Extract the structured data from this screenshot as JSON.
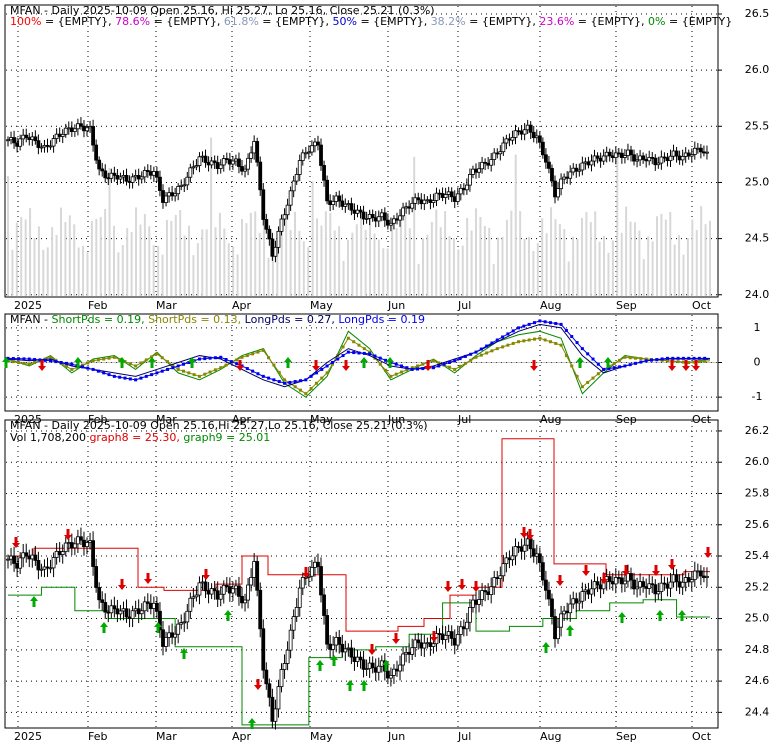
{
  "colors": {
    "fib100": "#ff0000",
    "fib786": "#cc00cc",
    "fib618": "#8899bb",
    "fib50": "#0000cc",
    "fib382": "#8899bb",
    "fib236": "#cc00cc",
    "fib0": "#008800",
    "price": "#000000",
    "volume": "#d8d8d8",
    "short1": "#008800",
    "short2": "#888800",
    "long1": "#000066",
    "long2": "#0000ee",
    "graph8": "#dd0000",
    "graph9": "#008800",
    "up_arrow": "#00aa00",
    "down_arrow": "#dd0000"
  },
  "chart_data": [
    {
      "type": "line",
      "panel": "price-fibonacci",
      "title": "MFAN - Daily 2025-10-09 Open 25.16, Hi 25.27, Lo 25.16, Close 25.21 (0.3%)",
      "fib_legend": [
        {
          "label": "100%",
          "text": " = {EMPTY},",
          "color_key": "fib100"
        },
        {
          "label": "78.6%",
          "text": " = {EMPTY},",
          "color_key": "fib786"
        },
        {
          "label": "61.8%",
          "text": " = {EMPTY},",
          "color_key": "fib618"
        },
        {
          "label": "50%",
          "text": " = {EMPTY},",
          "color_key": "fib50"
        },
        {
          "label": "38.2%",
          "text": " = {EMPTY},",
          "color_key": "fib382"
        },
        {
          "label": "23.6%",
          "text": " = {EMPTY},",
          "color_key": "fib236"
        },
        {
          "label": "0%",
          "text": " = {EMPTY}",
          "color_key": "fib0"
        }
      ],
      "x_tick_labels": [
        "2025",
        "Feb",
        "Mar",
        "Apr",
        "May",
        "Jun",
        "Jul",
        "Aug",
        "Sep",
        "Oct"
      ],
      "y_tick_labels": [
        "26.5",
        "26.0",
        "25.5",
        "25.0",
        "24.5",
        "24.0"
      ],
      "ylim": [
        23.98,
        26.58
      ],
      "close": [
        25.38,
        25.35,
        25.42,
        25.36,
        25.3,
        25.38,
        25.45,
        25.48,
        25.5,
        25.47,
        25.1,
        25.05,
        25.06,
        25.02,
        25.04,
        25.08,
        25.1,
        24.85,
        24.9,
        24.96,
        25.1,
        25.22,
        25.18,
        25.15,
        25.2,
        25.18,
        25.1,
        25.38,
        24.7,
        24.35,
        24.65,
        24.9,
        25.2,
        25.3,
        25.35,
        24.82,
        24.85,
        24.8,
        24.75,
        24.7,
        24.68,
        24.7,
        24.62,
        24.72,
        24.8,
        24.85,
        24.82,
        24.88,
        24.9,
        24.86,
        24.95,
        25.1,
        25.15,
        25.2,
        25.3,
        25.4,
        25.45,
        25.48,
        25.4,
        25.2,
        24.9,
        25.05,
        25.1,
        25.15,
        25.2,
        25.22,
        25.25,
        25.24,
        25.26,
        25.2,
        25.22,
        25.18,
        25.21,
        25.25,
        25.22,
        25.27,
        25.3,
        25.21
      ]
    },
    {
      "type": "line",
      "panel": "oscillator",
      "legend": [
        {
          "text": "MFAN - ",
          "color_key": "price"
        },
        {
          "text": "ShortPds = 0.19, ",
          "color_key": "short1"
        },
        {
          "text": "ShortPds = 0.13, ",
          "color_key": "short2"
        },
        {
          "text": "LongPds = 0.27, ",
          "color_key": "long1"
        },
        {
          "text": "LongPds = 0.19",
          "color_key": "long2"
        }
      ],
      "x_tick_labels": [
        "2025",
        "Feb",
        "Mar",
        "Apr",
        "May",
        "Jun",
        "Jul",
        "Aug",
        "Sep",
        "Oct"
      ],
      "y_tick_labels": [
        "1",
        "0",
        "-1"
      ],
      "ylim": [
        -1.4,
        1.4
      ],
      "series_values": {
        "short1": [
          0.1,
          -0.1,
          0.2,
          -0.3,
          0.1,
          0.2,
          -0.2,
          0.3,
          -0.3,
          -0.5,
          -0.2,
          0.2,
          0.4,
          -0.6,
          -1.0,
          -0.4,
          0.9,
          0.4,
          -0.5,
          -0.2,
          0.1,
          -0.3,
          0.2,
          0.6,
          0.8,
          0.9,
          0.7,
          -0.9,
          -0.3,
          0.2,
          0.1,
          0.05,
          0.0,
          0.1
        ],
        "short2": [
          0.05,
          -0.05,
          0.15,
          -0.2,
          0.05,
          0.15,
          -0.1,
          0.25,
          -0.2,
          -0.4,
          -0.15,
          0.15,
          0.35,
          -0.5,
          -0.9,
          -0.3,
          0.7,
          0.3,
          -0.4,
          -0.15,
          0.05,
          -0.2,
          0.15,
          0.4,
          0.6,
          0.7,
          0.5,
          -0.7,
          -0.2,
          0.15,
          0.1,
          0.05,
          0.0,
          0.05
        ],
        "long1": [
          0.1,
          0.05,
          0.1,
          -0.1,
          -0.2,
          -0.3,
          -0.4,
          -0.2,
          0.0,
          0.2,
          0.1,
          -0.2,
          -0.5,
          -0.7,
          -0.5,
          0.0,
          0.4,
          0.2,
          -0.1,
          -0.2,
          -0.1,
          0.1,
          0.3,
          0.6,
          0.9,
          1.1,
          1.0,
          0.2,
          -0.3,
          -0.1,
          0.05,
          0.1,
          0.1,
          0.1
        ],
        "long2": [
          0.12,
          0.1,
          0.05,
          -0.05,
          -0.2,
          -0.4,
          -0.5,
          -0.3,
          -0.1,
          0.1,
          0.15,
          -0.1,
          -0.4,
          -0.6,
          -0.5,
          -0.1,
          0.3,
          0.25,
          0.0,
          -0.2,
          -0.15,
          0.05,
          0.3,
          0.65,
          1.0,
          1.2,
          1.1,
          0.4,
          -0.2,
          -0.1,
          0.05,
          0.12,
          0.12,
          0.12
        ]
      }
    },
    {
      "type": "line",
      "panel": "price-stops",
      "title": "MFAN - Daily 2025-10-09 Open 25.16,Hi 25.27,Lo 25.16, Close 25.21 (0.3%)",
      "legend": [
        {
          "text": "Vol 1,708,200 ",
          "color_key": "price"
        },
        {
          "text": "graph8 = 25.30, ",
          "color_key": "graph8"
        },
        {
          "text": "graph9 = 25.01",
          "color_key": "graph9"
        }
      ],
      "x_tick_labels": [
        "2025",
        "Feb",
        "Mar",
        "Apr",
        "May",
        "Jun",
        "Jul",
        "Aug",
        "Sep",
        "Oct"
      ],
      "y_tick_labels": [
        "26.2",
        "26.0",
        "25.8",
        "25.6",
        "25.4",
        "25.2",
        "25.0",
        "24.8",
        "24.6",
        "24.4"
      ],
      "ylim": [
        24.3,
        26.27
      ],
      "graph8": [
        25.4,
        25.45,
        25.45,
        25.45,
        25.45,
        25.2,
        25.18,
        25.18,
        25.22,
        25.4,
        25.28,
        25.28,
        25.28,
        24.92,
        24.92,
        24.95,
        25.0,
        25.15,
        25.2,
        26.15,
        26.15,
        25.35,
        25.35,
        25.28,
        25.28,
        25.28,
        25.3
      ],
      "graph9": [
        25.15,
        25.2,
        25.05,
        25.0,
        25.0,
        24.82,
        24.82,
        24.32,
        24.32,
        24.75,
        24.8,
        24.82,
        24.9,
        25.1,
        24.92,
        24.95,
        25.0,
        25.05,
        25.1,
        25.12,
        25.01
      ]
    }
  ]
}
